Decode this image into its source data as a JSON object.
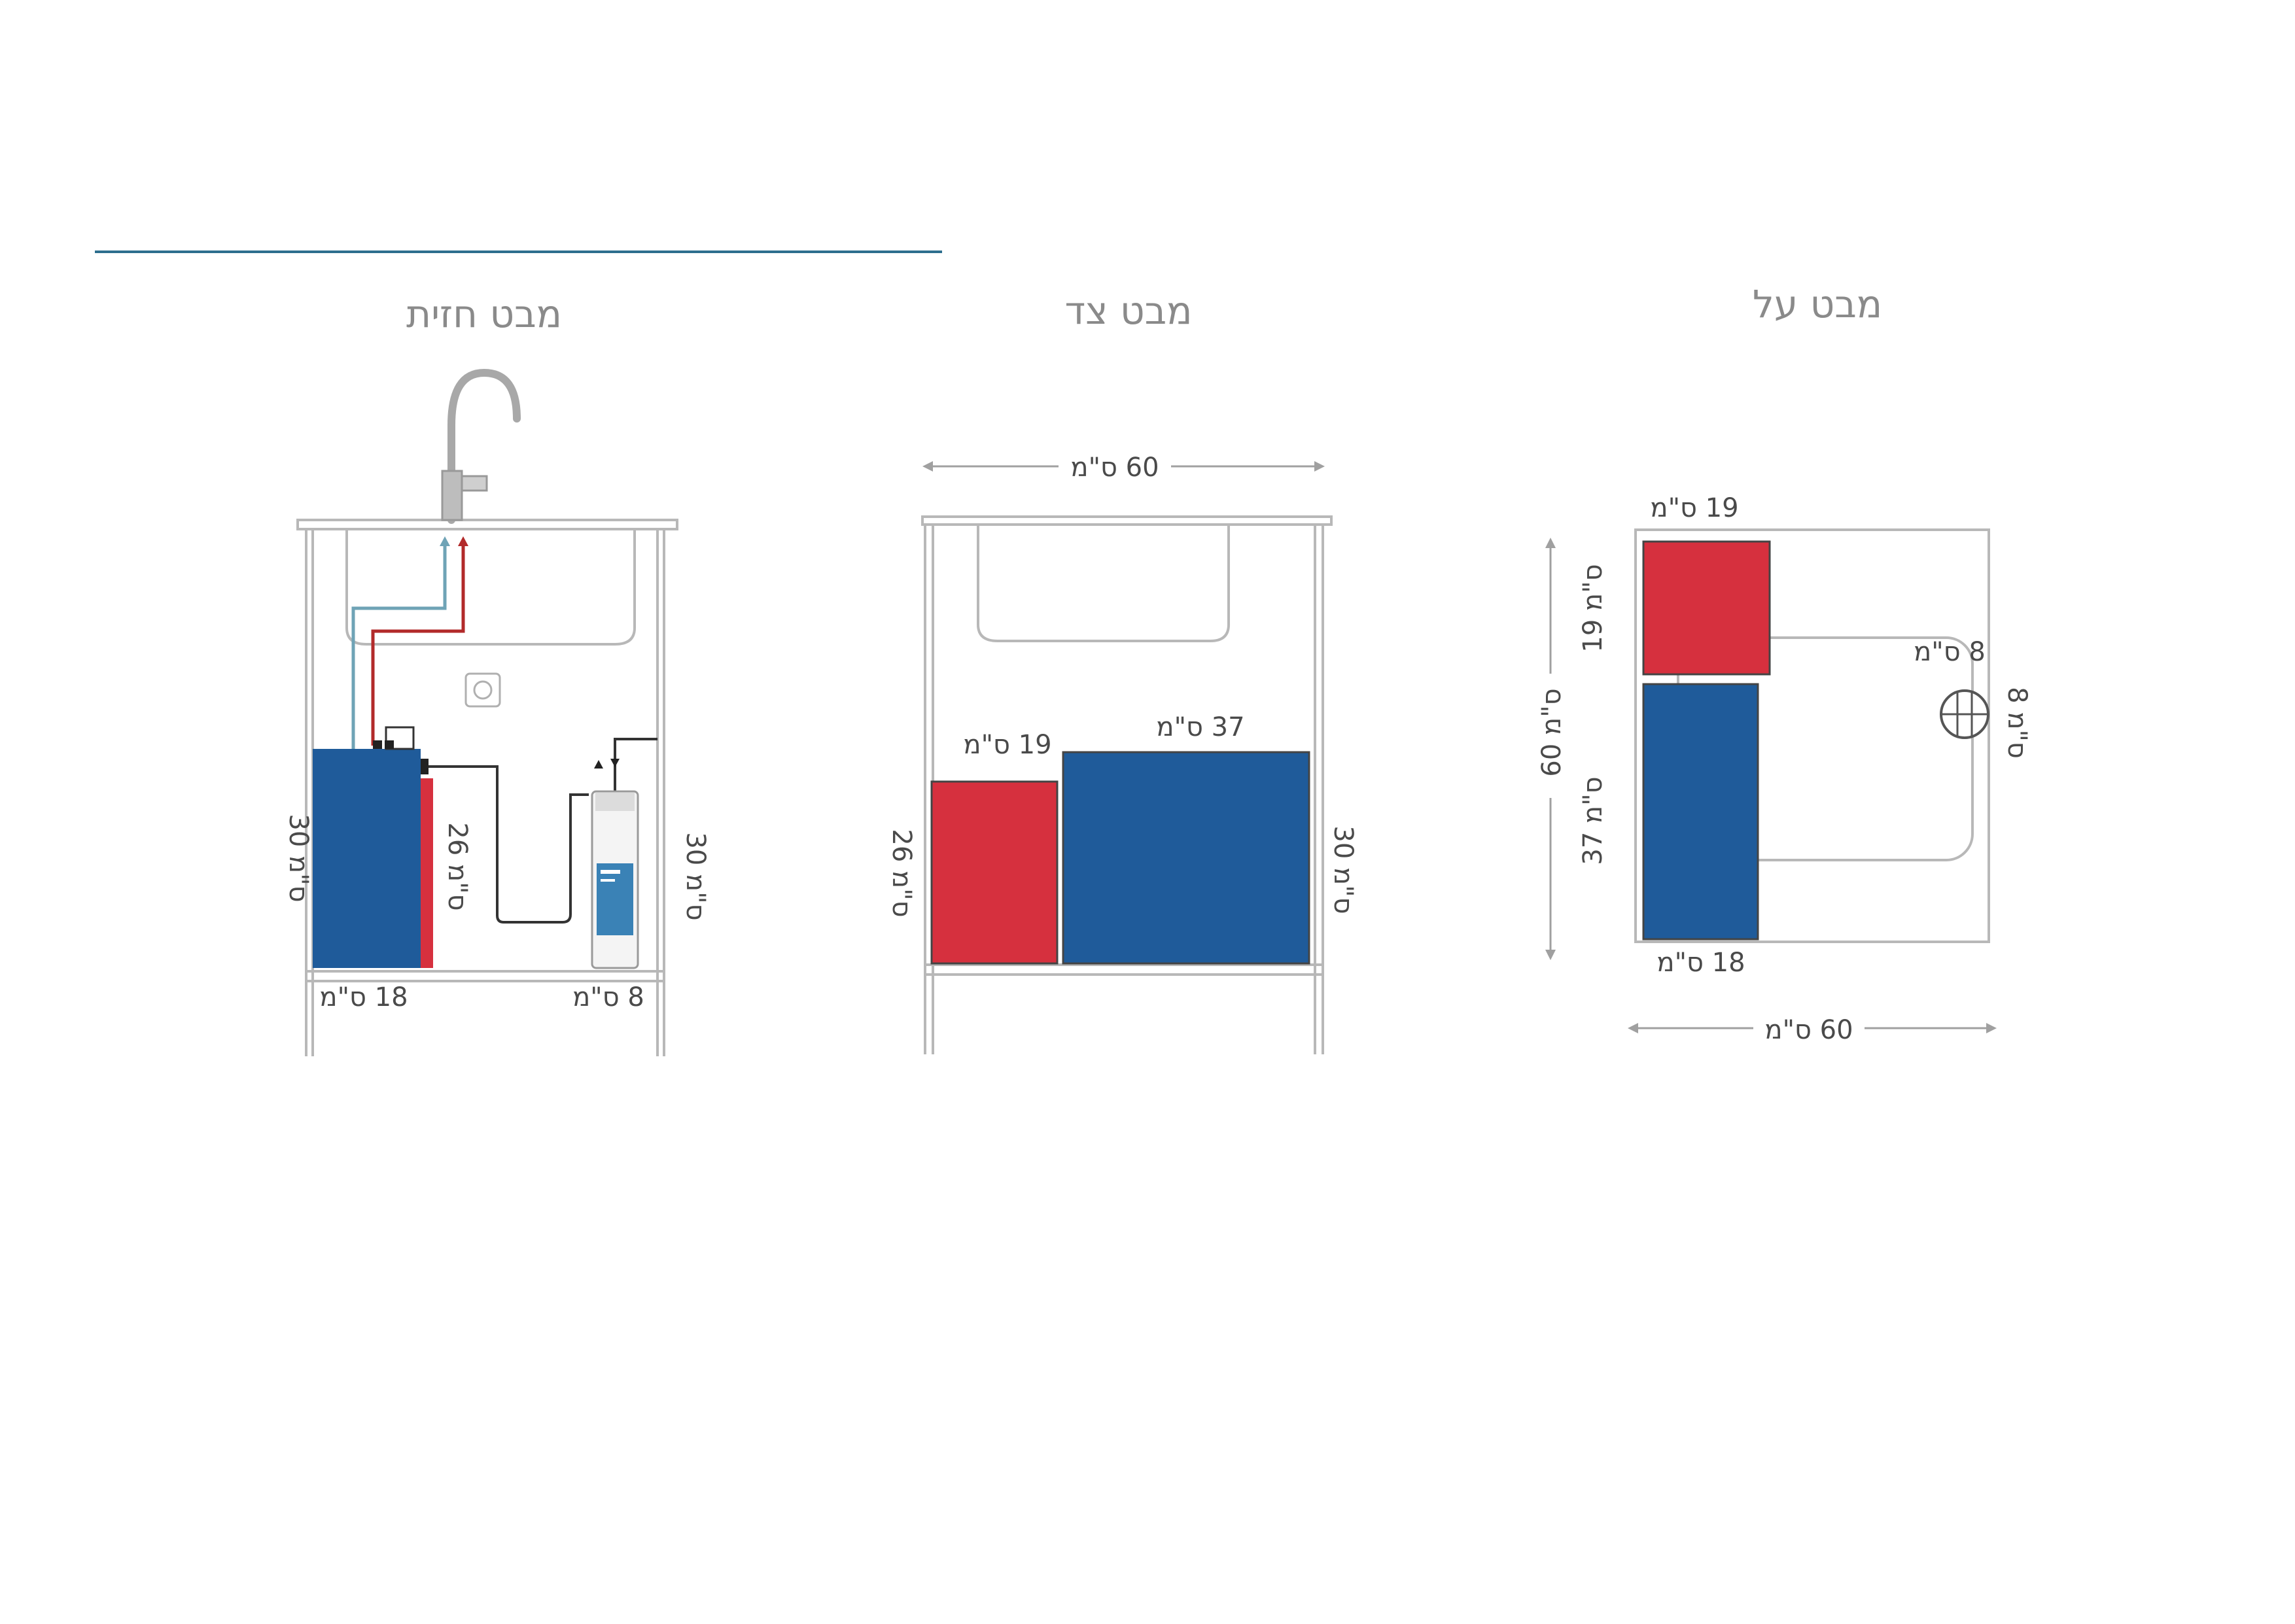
{
  "colors": {
    "blue_unit": "#1f5b9a",
    "red_unit": "#d6303e",
    "outline": "#b8b8b8",
    "header_line": "#2d6e8e",
    "hot_pipe": "#b22a2a",
    "cold_pipe": "#6fa3b6"
  },
  "views": {
    "front": {
      "title": "מבט חזית",
      "dim_unit_height": "30 ס\"מ",
      "dim_unit_depth": "26 ס\"מ",
      "dim_filter_height": "30 ס\"מ",
      "dim_unit_width": "18 ס\"מ",
      "dim_filter_width": "8 ס\"מ"
    },
    "side": {
      "title": "מבט צד",
      "dim_cabinet_width": "60 ס\"מ",
      "dim_red_width": "19 ס\"מ",
      "dim_blue_width": "37 ס\"מ",
      "dim_red_height": "26 ס\"מ",
      "dim_blue_height": "30 ס\"מ"
    },
    "top": {
      "title": "מבט על",
      "dim_red_width": "19 ס\"מ",
      "dim_red_depth": "19 ס\"מ",
      "dim_filter": "8 ס\"מ",
      "dim_filter_side": "8 ס\"מ",
      "dim_cabinet_depth": "60 ס\"מ",
      "dim_blue_depth": "37 ס\"מ",
      "dim_blue_width": "18 ס\"מ",
      "dim_cabinet_width": "60 ס\"מ"
    }
  }
}
